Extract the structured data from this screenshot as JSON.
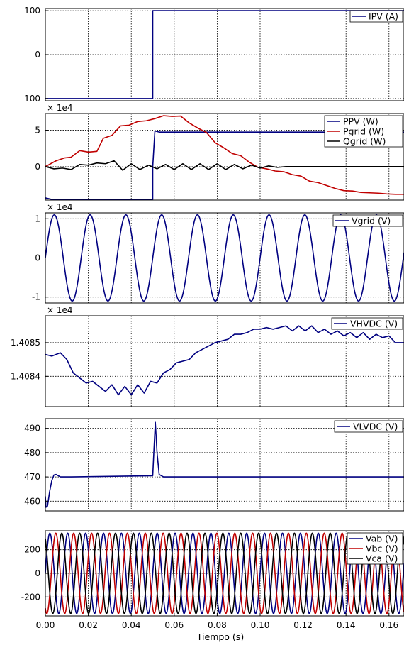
{
  "chart_data": [
    {
      "type": "line",
      "xlim": [
        0,
        0.167
      ],
      "ylim": [
        -105,
        105
      ],
      "yticks": [
        100,
        0,
        -100
      ],
      "ytick_labels": [
        "100",
        "0",
        "-100"
      ],
      "multiplier": "",
      "grid": true,
      "legend_position": "top-right",
      "series": [
        {
          "name": "IPV (A)",
          "color": "#000080",
          "x": [
            0,
            0.05,
            0.05,
            0.167
          ],
          "y": [
            -100,
            -100,
            100,
            100
          ]
        }
      ]
    },
    {
      "type": "line",
      "xlim": [
        0,
        0.167
      ],
      "ylim": [
        -4.6,
        7.3
      ],
      "yticks": [
        5,
        0
      ],
      "ytick_labels": [
        "5",
        "0"
      ],
      "multiplier": "× 1e4",
      "grid": true,
      "legend_position": "top-right",
      "series": [
        {
          "name": "PPV (W)",
          "color": "#000080",
          "x": [
            0,
            0.003,
            0.05,
            0.05,
            0.051,
            0.053,
            0.167
          ],
          "y": [
            -4.3,
            -4.5,
            -4.5,
            0.0,
            4.9,
            4.75,
            4.75
          ]
        },
        {
          "name": "Pgrid (W)",
          "color": "#c00000",
          "x": [
            0,
            0.005,
            0.009,
            0.012,
            0.016,
            0.02,
            0.024,
            0.027,
            0.031,
            0.035,
            0.039,
            0.043,
            0.047,
            0.051,
            0.055,
            0.059,
            0.063,
            0.067,
            0.071,
            0.075,
            0.079,
            0.083,
            0.087,
            0.091,
            0.095,
            0.099,
            0.103,
            0.107,
            0.111,
            0.115,
            0.119,
            0.123,
            0.127,
            0.131,
            0.135,
            0.139,
            0.143,
            0.147,
            0.151,
            0.155,
            0.159,
            0.163,
            0.167
          ],
          "y": [
            0,
            0.8,
            1.2,
            1.3,
            2.2,
            2.0,
            2.1,
            3.9,
            4.3,
            5.6,
            5.7,
            6.2,
            6.3,
            6.6,
            7.0,
            6.9,
            6.95,
            6.0,
            5.3,
            4.7,
            3.3,
            2.6,
            1.8,
            1.5,
            0.6,
            -0.1,
            -0.3,
            -0.6,
            -0.7,
            -1.1,
            -1.3,
            -2.0,
            -2.2,
            -2.6,
            -3.0,
            -3.3,
            -3.35,
            -3.55,
            -3.6,
            -3.65,
            -3.75,
            -3.8,
            -3.8
          ]
        },
        {
          "name": "Qgrid (W)",
          "color": "#000000",
          "x": [
            0,
            0.004,
            0.008,
            0.012,
            0.016,
            0.02,
            0.024,
            0.028,
            0.032,
            0.036,
            0.04,
            0.044,
            0.048,
            0.052,
            0.056,
            0.06,
            0.064,
            0.068,
            0.072,
            0.076,
            0.08,
            0.084,
            0.088,
            0.092,
            0.096,
            0.1,
            0.104,
            0.108,
            0.112,
            0.167
          ],
          "y": [
            0,
            -0.3,
            -0.2,
            -0.4,
            0.3,
            0.2,
            0.5,
            0.4,
            0.8,
            -0.5,
            0.4,
            -0.4,
            0.2,
            -0.3,
            0.3,
            -0.4,
            0.4,
            -0.4,
            0.4,
            -0.4,
            0.4,
            -0.4,
            0.3,
            -0.3,
            0.2,
            -0.2,
            0.1,
            -0.1,
            0.0,
            0.0
          ]
        }
      ]
    },
    {
      "type": "line",
      "xlim": [
        0,
        0.167
      ],
      "ylim": [
        -1.15,
        1.15
      ],
      "yticks": [
        1,
        0,
        -1
      ],
      "ytick_labels": [
        "1",
        "0",
        "-1"
      ],
      "multiplier": "× 1e4",
      "grid": true,
      "legend_position": "top-right",
      "series": [
        {
          "name": "Vgrid (V)",
          "color": "#000080",
          "function": "sine",
          "amplitude": 1.1,
          "frequency_hz": 60,
          "phase_deg": 0
        }
      ]
    },
    {
      "type": "line",
      "xlim": [
        0,
        0.167
      ],
      "ylim": [
        1.40831,
        1.40858
      ],
      "yticks": [
        1.4085,
        1.4084
      ],
      "ytick_labels": [
        "1.4085",
        "1.4084"
      ],
      "multiplier": "× 1e4",
      "grid": true,
      "legend_position": "top-right",
      "series": [
        {
          "name": "VHVDC (V)",
          "color": "#000080",
          "x": [
            0,
            0.003,
            0.007,
            0.01,
            0.013,
            0.016,
            0.019,
            0.022,
            0.025,
            0.028,
            0.031,
            0.034,
            0.037,
            0.04,
            0.043,
            0.046,
            0.049,
            0.052,
            0.055,
            0.058,
            0.061,
            0.064,
            0.067,
            0.07,
            0.073,
            0.076,
            0.079,
            0.082,
            0.085,
            0.088,
            0.091,
            0.094,
            0.097,
            0.1,
            0.103,
            0.106,
            0.109,
            0.112,
            0.115,
            0.118,
            0.121,
            0.124,
            0.127,
            0.13,
            0.133,
            0.136,
            0.139,
            0.142,
            0.145,
            0.148,
            0.151,
            0.154,
            0.157,
            0.16,
            0.163,
            0.167
          ],
          "y": [
            1.408465,
            1.40846,
            1.40847,
            1.40845,
            1.40841,
            1.408395,
            1.40838,
            1.408385,
            1.40837,
            1.408355,
            1.408375,
            1.408345,
            1.40837,
            1.408345,
            1.408375,
            1.40835,
            1.408385,
            1.40838,
            1.40841,
            1.40842,
            1.40844,
            1.408445,
            1.40845,
            1.40847,
            1.40848,
            1.40849,
            1.4085,
            1.408505,
            1.40851,
            1.408525,
            1.408525,
            1.40853,
            1.40854,
            1.40854,
            1.408545,
            1.40854,
            1.408545,
            1.40855,
            1.408535,
            1.40855,
            1.408535,
            1.40855,
            1.40853,
            1.40854,
            1.408525,
            1.408535,
            1.40852,
            1.40853,
            1.408515,
            1.40853,
            1.40851,
            1.408525,
            1.408515,
            1.40852,
            1.4085,
            1.4085
          ]
        }
      ]
    },
    {
      "type": "line",
      "xlim": [
        0,
        0.167
      ],
      "ylim": [
        456,
        494
      ],
      "yticks": [
        490,
        480,
        470,
        460
      ],
      "ytick_labels": [
        "490",
        "480",
        "470",
        "460"
      ],
      "multiplier": "",
      "grid": true,
      "legend_position": "top-right",
      "series": [
        {
          "name": "VLVDC (V)",
          "color": "#000080",
          "x": [
            0,
            0.0003,
            0.001,
            0.002,
            0.003,
            0.004,
            0.005,
            0.007,
            0.009,
            0.012,
            0.05,
            0.0505,
            0.0512,
            0.052,
            0.053,
            0.055,
            0.058,
            0.167
          ],
          "y": [
            462,
            457.5,
            458,
            464,
            468.5,
            470.8,
            471,
            470,
            470,
            470,
            470.5,
            480,
            492.5,
            480,
            471,
            470,
            470,
            470
          ]
        }
      ]
    },
    {
      "type": "line",
      "xlim": [
        0,
        0.167
      ],
      "ylim": [
        -360,
        360
      ],
      "yticks": [
        200,
        0,
        -200
      ],
      "ytick_labels": [
        "200",
        "0",
        "-200"
      ],
      "multiplier": "",
      "grid": true,
      "legend_position": "top-right",
      "xticks": [
        0.0,
        0.02,
        0.04,
        0.06,
        0.08,
        0.1,
        0.12,
        0.14,
        0.16
      ],
      "xtick_labels": [
        "0.00",
        "0.02",
        "0.04",
        "0.06",
        "0.08",
        "0.10",
        "0.12",
        "0.14",
        "0.16"
      ],
      "xlabel": "Tiempo (s)",
      "series": [
        {
          "name": "Vab (V)",
          "color": "#000080",
          "function": "sine",
          "amplitude": 340,
          "frequency_hz": 120,
          "phase_deg": 0
        },
        {
          "name": "Vbc (V)",
          "color": "#c00000",
          "function": "sine",
          "amplitude": 340,
          "frequency_hz": 120,
          "phase_deg": -120
        },
        {
          "name": "Vca (V)",
          "color": "#000000",
          "function": "sine",
          "amplitude": 340,
          "frequency_hz": 120,
          "phase_deg": 120
        }
      ]
    }
  ]
}
